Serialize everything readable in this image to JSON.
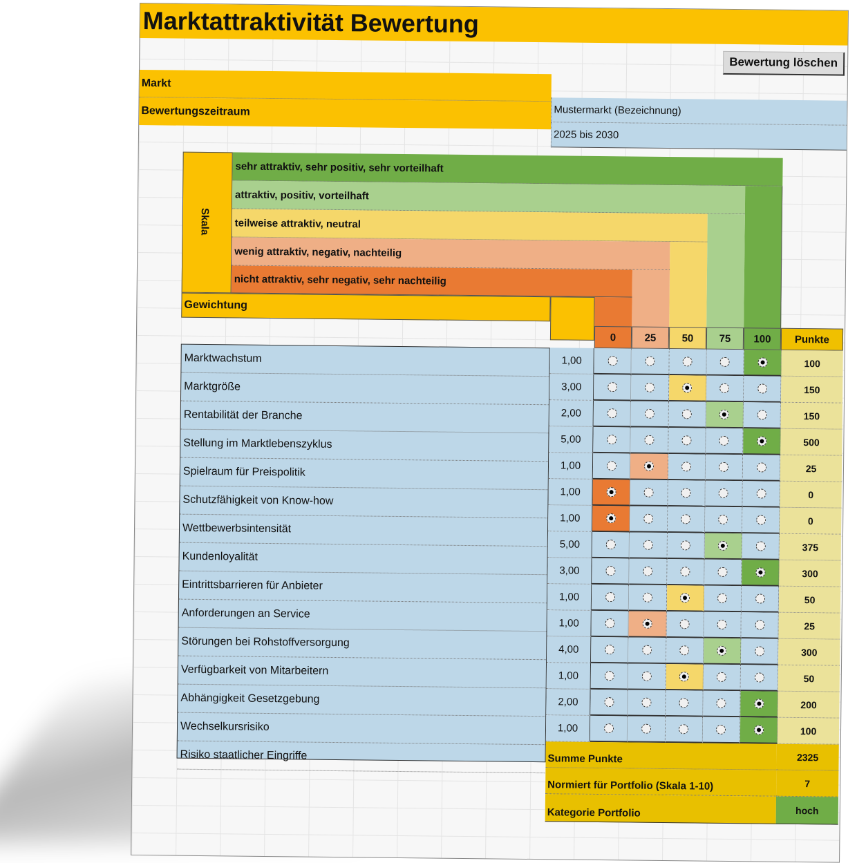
{
  "title": "Marktattraktivität Bewertung",
  "clear_button": "Bewertung löschen",
  "info": {
    "market_label": "Markt",
    "period_label": "Bewertungszeitraum",
    "market_value": "Mustermarkt (Bezeichnung)",
    "period_value": "2025 bis 2030"
  },
  "scale": {
    "label": "Skala",
    "levels": [
      {
        "text": "sehr attraktiv, sehr positiv, sehr vorteilhaft",
        "color": "#70ad47"
      },
      {
        "text": "attraktiv, positiv, vorteilhaft",
        "color": "#a9d08e"
      },
      {
        "text": "teilweise attraktiv, neutral",
        "color": "#f5d76a"
      },
      {
        "text": "wenig attraktiv, negativ, nachteilig",
        "color": "#efaf86"
      },
      {
        "text": "nicht attraktiv, sehr negativ, sehr nachteilig",
        "color": "#e97a33"
      }
    ]
  },
  "weighting_label": "Gewichtung",
  "columns": {
    "scores": [
      "0",
      "25",
      "50",
      "75",
      "100"
    ],
    "points_header": "Punkte"
  },
  "criteria": [
    "Marktwachstum",
    "Marktgröße",
    "Rentabilität der Branche",
    "Stellung im Marktlebenszyklus",
    "Spielraum für Preispolitik",
    "Schutzfähigkeit von Know-how",
    "Wettbewerbsintensität",
    "Kundenloyalität",
    "Eintrittsbarrieren für Anbieter",
    "Anforderungen an Service",
    "Störungen bei Rohstoffversorgung",
    "Verfügbarkeit von Mitarbeitern",
    "Abhängigkeit Gesetzgebung",
    "Wechselkursrisiko",
    "Risiko staatlicher Eingriffe"
  ],
  "rows": [
    {
      "weight": "1,00",
      "selected": 4,
      "points": "100"
    },
    {
      "weight": "3,00",
      "selected": 2,
      "points": "150"
    },
    {
      "weight": "2,00",
      "selected": 3,
      "points": "150"
    },
    {
      "weight": "5,00",
      "selected": 4,
      "points": "500"
    },
    {
      "weight": "1,00",
      "selected": 1,
      "points": "25"
    },
    {
      "weight": "1,00",
      "selected": 0,
      "points": "0"
    },
    {
      "weight": "1,00",
      "selected": 0,
      "points": "0"
    },
    {
      "weight": "5,00",
      "selected": 3,
      "points": "375"
    },
    {
      "weight": "3,00",
      "selected": 4,
      "points": "300"
    },
    {
      "weight": "1,00",
      "selected": 2,
      "points": "50"
    },
    {
      "weight": "1,00",
      "selected": 1,
      "points": "25"
    },
    {
      "weight": "4,00",
      "selected": 3,
      "points": "300"
    },
    {
      "weight": "1,00",
      "selected": 2,
      "points": "50"
    },
    {
      "weight": "2,00",
      "selected": 4,
      "points": "200"
    },
    {
      "weight": "1,00",
      "selected": 4,
      "points": "100"
    }
  ],
  "summary": {
    "sum_label": "Summe Punkte",
    "sum_value": "2325",
    "normalized_label": "Normiert für Portfolio (Skala 1-10)",
    "normalized_value": "7",
    "category_label": "Kategorie Portfolio",
    "category_value": "hoch",
    "category_color": "#70ad47"
  }
}
